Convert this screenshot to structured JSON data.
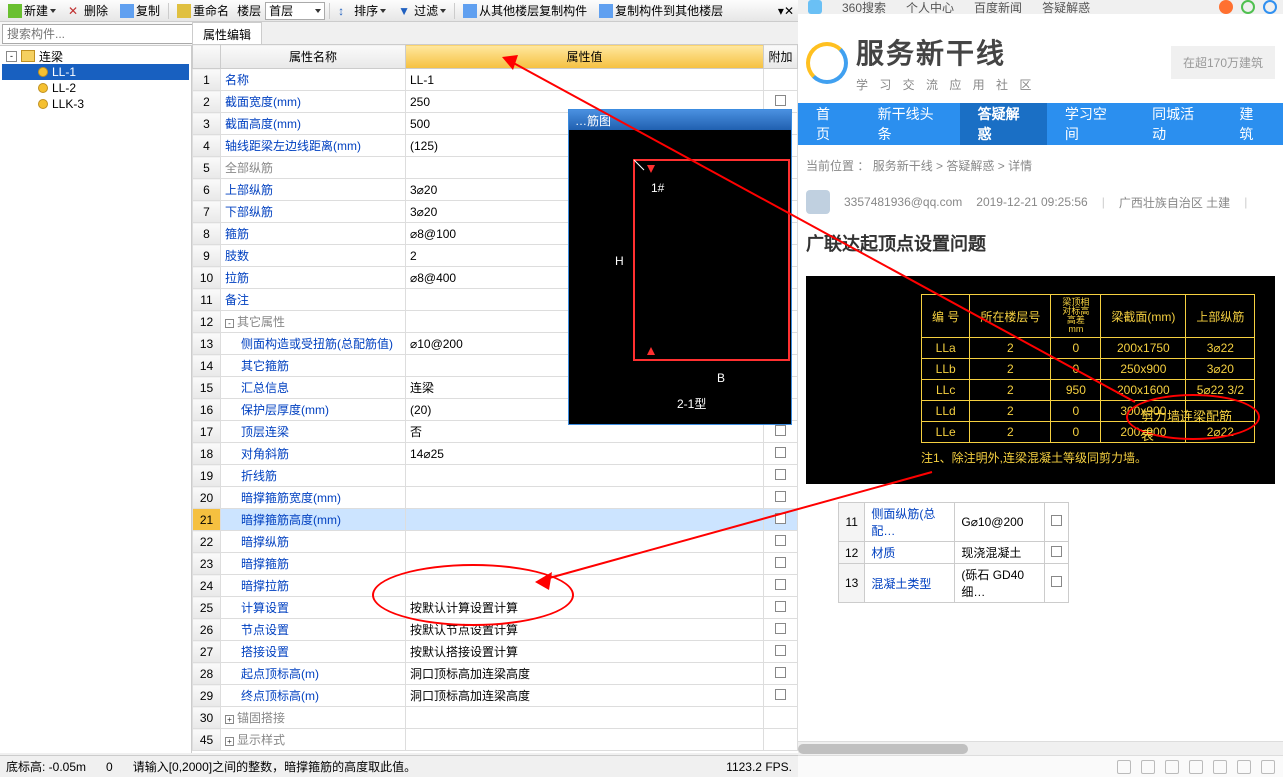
{
  "toolbar": {
    "new": "新建",
    "delete": "删除",
    "copy": "复制",
    "rename": "重命名",
    "floor_label": "楼层",
    "floor_value": "首层",
    "sort": "排序",
    "filter": "过滤",
    "copy_from": "从其他楼层复制构件",
    "copy_to": "复制构件到其他楼层"
  },
  "search": {
    "placeholder": "搜索构件...",
    "icon": "search-icon"
  },
  "tree": {
    "root": "连梁",
    "items": [
      {
        "label": "LL-1",
        "selected": true
      },
      {
        "label": "LL-2",
        "selected": false
      },
      {
        "label": "LLK-3",
        "selected": false
      }
    ]
  },
  "prop_panel": {
    "tab": "属性编辑",
    "headers": {
      "name": "属性名称",
      "value": "属性值",
      "attach": "附加"
    },
    "rows": [
      {
        "n": "1",
        "name": "名称",
        "value": "LL-1",
        "chk": false,
        "indent": 0
      },
      {
        "n": "2",
        "name": "截面宽度(mm)",
        "value": "250",
        "chk": true,
        "indent": 0
      },
      {
        "n": "3",
        "name": "截面高度(mm)",
        "value": "500",
        "chk": true,
        "indent": 0
      },
      {
        "n": "4",
        "name": "轴线距梁左边线距离(mm)",
        "value": "(125)",
        "chk": true,
        "indent": 0
      },
      {
        "n": "5",
        "name": "全部纵筋",
        "value": "",
        "chk": true,
        "indent": 0,
        "grey": true
      },
      {
        "n": "6",
        "name": "上部纵筋",
        "value": "3⌀20",
        "chk": true,
        "indent": 0
      },
      {
        "n": "7",
        "name": "下部纵筋",
        "value": "3⌀20",
        "chk": true,
        "indent": 0
      },
      {
        "n": "8",
        "name": "箍筋",
        "value": "⌀8@100",
        "chk": true,
        "indent": 0
      },
      {
        "n": "9",
        "name": "肢数",
        "value": "2",
        "chk": true,
        "indent": 0
      },
      {
        "n": "10",
        "name": "拉筋",
        "value": "⌀8@400",
        "chk": true,
        "indent": 0
      },
      {
        "n": "11",
        "name": "备注",
        "value": "",
        "chk": true,
        "indent": 0
      },
      {
        "n": "12",
        "name": "其它属性",
        "value": "",
        "chk": false,
        "indent": 0,
        "grey": true,
        "exp": "-"
      },
      {
        "n": "13",
        "name": "侧面构造或受扭筋(总配筋值)",
        "value": "⌀10@200",
        "chk": true,
        "indent": 1
      },
      {
        "n": "14",
        "name": "其它箍筋",
        "value": "",
        "chk": true,
        "indent": 1
      },
      {
        "n": "15",
        "name": "汇总信息",
        "value": "连梁",
        "chk": true,
        "indent": 1
      },
      {
        "n": "16",
        "name": "保护层厚度(mm)",
        "value": "(20)",
        "chk": true,
        "indent": 1
      },
      {
        "n": "17",
        "name": "顶层连梁",
        "value": "否",
        "chk": true,
        "indent": 1
      },
      {
        "n": "18",
        "name": "对角斜筋",
        "value": "14⌀25",
        "chk": true,
        "indent": 1
      },
      {
        "n": "19",
        "name": "折线筋",
        "value": "",
        "chk": true,
        "indent": 1
      },
      {
        "n": "20",
        "name": "暗撑箍筋宽度(mm)",
        "value": "",
        "chk": true,
        "indent": 1
      },
      {
        "n": "21",
        "name": "暗撑箍筋高度(mm)",
        "value": "",
        "chk": true,
        "indent": 1,
        "sel": true
      },
      {
        "n": "22",
        "name": "暗撑纵筋",
        "value": "",
        "chk": true,
        "indent": 1
      },
      {
        "n": "23",
        "name": "暗撑箍筋",
        "value": "",
        "chk": true,
        "indent": 1
      },
      {
        "n": "24",
        "name": "暗撑拉筋",
        "value": "",
        "chk": true,
        "indent": 1
      },
      {
        "n": "25",
        "name": "计算设置",
        "value": "按默认计算设置计算",
        "chk": true,
        "indent": 1
      },
      {
        "n": "26",
        "name": "节点设置",
        "value": "按默认节点设置计算",
        "chk": true,
        "indent": 1
      },
      {
        "n": "27",
        "name": "搭接设置",
        "value": "按默认搭接设置计算",
        "chk": true,
        "indent": 1
      },
      {
        "n": "28",
        "name": "起点顶标高(m)",
        "value": "洞口顶标高加连梁高度",
        "chk": true,
        "indent": 1
      },
      {
        "n": "29",
        "name": "终点顶标高(m)",
        "value": "洞口顶标高加连梁高度",
        "chk": true,
        "indent": 1
      },
      {
        "n": "30",
        "name": "锚固搭接",
        "value": "",
        "chk": false,
        "indent": 0,
        "grey": true,
        "exp": "+"
      },
      {
        "n": "45",
        "name": "显示样式",
        "value": "",
        "chk": false,
        "indent": 0,
        "grey": true,
        "exp": "+"
      }
    ]
  },
  "status": {
    "left": "底标高: -0.05m",
    "zero": "0",
    "hint": "请输入[0,2000]之间的整数，暗撑箍筋的高度取此值。",
    "fps": "1123.2 FPS."
  },
  "diagram": {
    "title": "…筋图",
    "label_top": "1#",
    "label_H": "H",
    "label_B": "B",
    "label_type": "2-1型",
    "line_color": "#ff3030",
    "text_color": "#ffffff",
    "bg": "#000000"
  },
  "browser": {
    "toplinks": [
      "360搜索",
      "个人中心",
      "百度新闻",
      "答疑解惑"
    ],
    "logo_title": "服务新干线",
    "logo_sub": "学 习 交 流 应 用 社 区",
    "search_hint": "在超170万建筑",
    "nav": [
      "首页",
      "新干线头条",
      "答疑解惑",
      "学习空间",
      "同城活动",
      "建筑"
    ],
    "nav_active": 2,
    "crumb_label": "当前位置 ：",
    "crumbs": [
      "服务新干线",
      "答疑解惑",
      "详情"
    ],
    "meta": {
      "user": "3357481936@qq.com",
      "time": "2019-12-21 09:25:56",
      "region": "广西壮族自治区 土建"
    },
    "title": "广联达起顶点设置问题",
    "embed": {
      "caption": "剪力墙连梁配筋表",
      "text_color": "#f5d040",
      "bg": "#000000",
      "headers": [
        "编 号",
        "所在楼层号",
        "梁顶相对标高高差mm",
        "梁截面(mm)",
        "上部纵筋"
      ],
      "rows": [
        [
          "LLa",
          "2",
          "0",
          "200x1750",
          "3⌀22"
        ],
        [
          "LLb",
          "2",
          "0",
          "250x900",
          "3⌀20"
        ],
        [
          "LLc",
          "2",
          "950",
          "200x1600",
          "5⌀22 3/2"
        ],
        [
          "LLd",
          "2",
          "0",
          "300x900",
          ""
        ],
        [
          "LLe",
          "2",
          "0",
          "200x900",
          "2⌀22"
        ]
      ],
      "note": "注1、除注明外,连梁混凝土等级同剪力墙。"
    },
    "lower": [
      {
        "n": "11",
        "name": "侧面纵筋(总配…",
        "value": "G⌀10@200"
      },
      {
        "n": "12",
        "name": "材质",
        "value": "现浇混凝土"
      },
      {
        "n": "13",
        "name": "混凝土类型",
        "value": "(砾石 GD40 细…"
      }
    ]
  }
}
